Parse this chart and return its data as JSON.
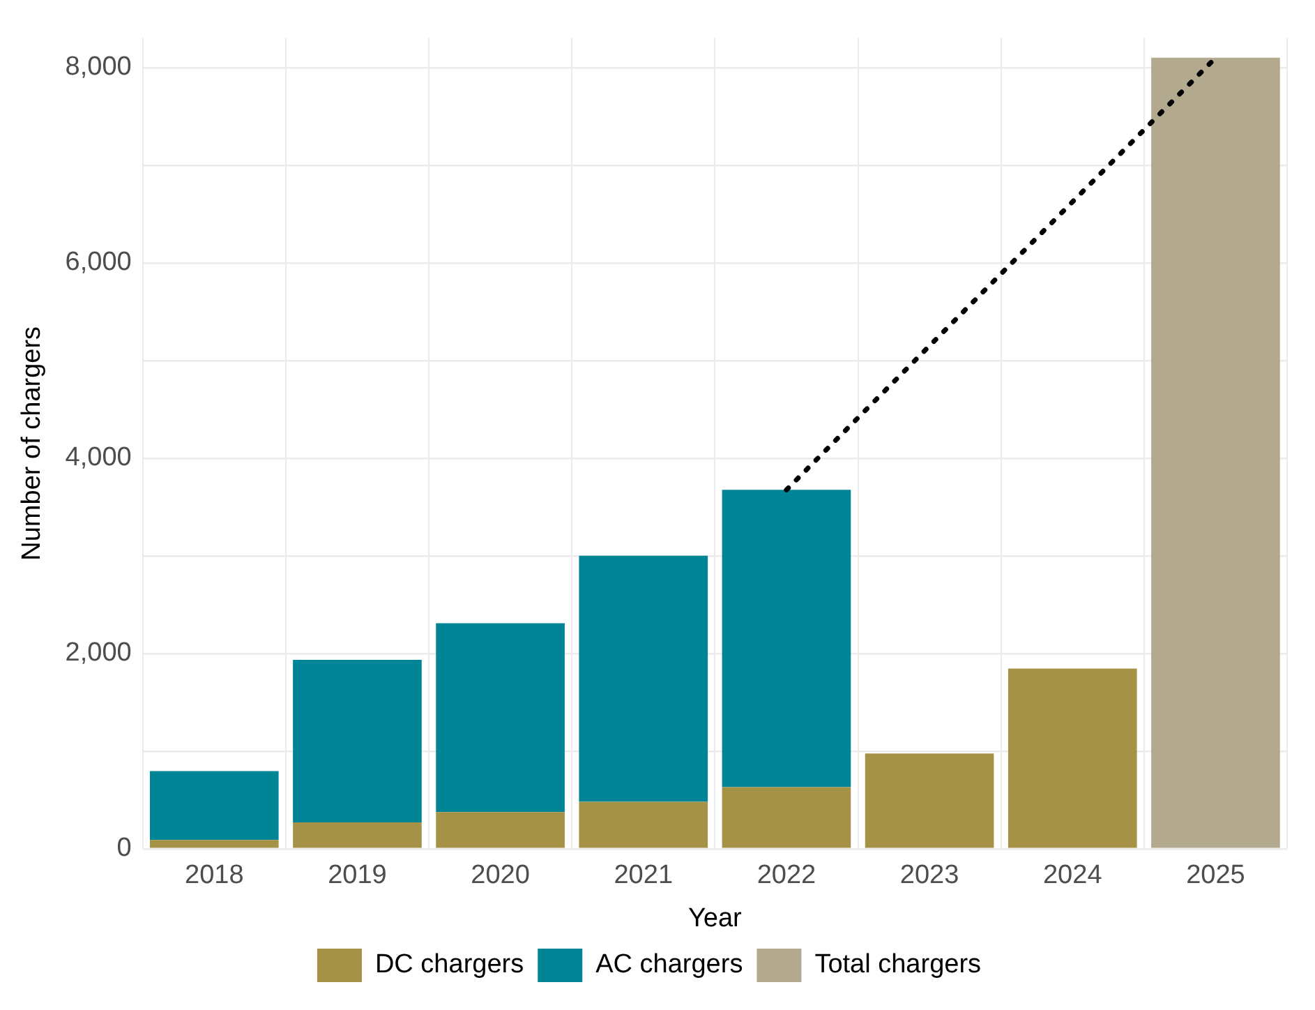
{
  "chart_data": {
    "type": "bar",
    "xlabel": "Year",
    "ylabel": "Number of chargers",
    "categories": [
      "2018",
      "2019",
      "2020",
      "2021",
      "2022",
      "2023",
      "2024",
      "2025"
    ],
    "stacked": true,
    "series": [
      {
        "name": "DC chargers",
        "color": "#a69247",
        "values": [
          90,
          270,
          375,
          480,
          630,
          975,
          1845,
          null
        ]
      },
      {
        "name": "AC chargers",
        "color": "#008597",
        "values": [
          705,
          1665,
          1935,
          2520,
          3045,
          null,
          null,
          null
        ]
      },
      {
        "name": "Total chargers",
        "color": "#b3a98e",
        "values": [
          null,
          null,
          null,
          null,
          null,
          null,
          null,
          8100
        ]
      },
      {
        "type": "line",
        "color": "#000000",
        "line_style": "dotted",
        "marker": "none",
        "values": [
          null,
          null,
          null,
          null,
          3675,
          null,
          null,
          8100
        ]
      }
    ],
    "ylim": [
      0,
      8300
    ],
    "yticks": [
      0,
      {
        "value": 1000,
        "label": null
      },
      {
        "value": 2000,
        "label": "2,000"
      },
      {
        "value": 3000,
        "label": null
      },
      {
        "value": 4000,
        "label": "4,000"
      },
      {
        "value": 5000,
        "label": null
      },
      {
        "value": 6000,
        "label": "6,000"
      },
      {
        "value": 7000,
        "label": null
      },
      {
        "value": 8000,
        "label": "8,000"
      }
    ],
    "grid": true,
    "legend": "bottom"
  }
}
